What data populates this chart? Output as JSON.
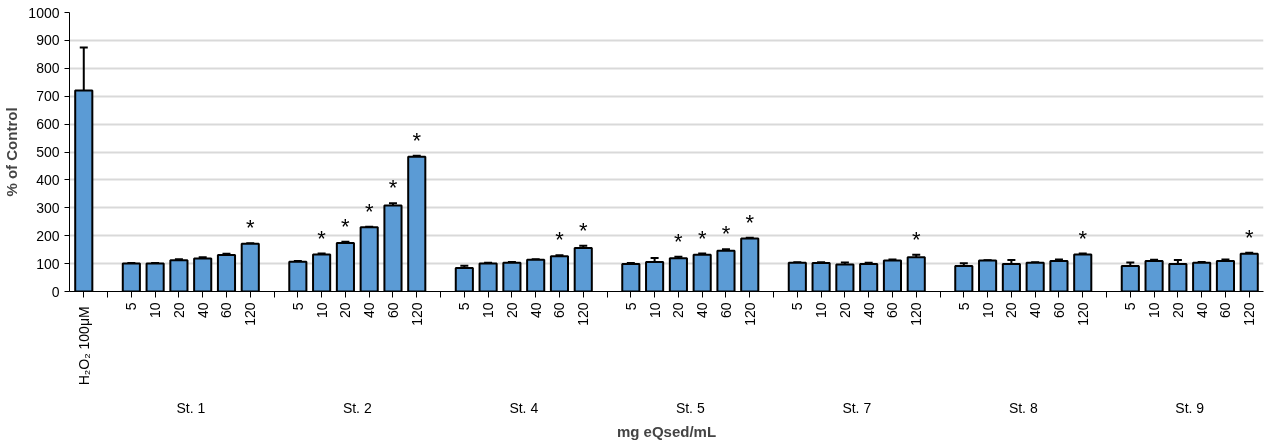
{
  "chart_data": {
    "type": "bar",
    "xlabel": "mg eQsed/mL",
    "ylabel": "% of Control",
    "categories": [
      "H₂O₂  100μM",
      null,
      "5",
      "10",
      "20",
      "40",
      "60",
      "120",
      null,
      "5",
      "10",
      "20",
      "40",
      "60",
      "120",
      null,
      "5",
      "10",
      "20",
      "40",
      "60",
      "120",
      null,
      "5",
      "10",
      "20",
      "40",
      "60",
      "120",
      null,
      "5",
      "10",
      "20",
      "40",
      "60",
      "120",
      null,
      "5",
      "10",
      "20",
      "40",
      "60",
      "120",
      null,
      "5",
      "10",
      "20",
      "40",
      "60",
      "120"
    ],
    "values": [
      720,
      null,
      100,
      100,
      112,
      118,
      131,
      171,
      null,
      107,
      133,
      174,
      230,
      308,
      483,
      null,
      84,
      100,
      103,
      114,
      126,
      156,
      null,
      99,
      106,
      119,
      132,
      146,
      190,
      null,
      103,
      102,
      97,
      99,
      111,
      123,
      null,
      91,
      111,
      99,
      103,
      109,
      133,
      null,
      91,
      109,
      99,
      103,
      109,
      135
    ],
    "errors": [
      155,
      null,
      2,
      2,
      4,
      5,
      4,
      2,
      null,
      2,
      3,
      4,
      2,
      8,
      4,
      null,
      8,
      3,
      3,
      2,
      4,
      8,
      null,
      3,
      14,
      6,
      4,
      5,
      3,
      null,
      2,
      3,
      7,
      4,
      4,
      9,
      null,
      10,
      1,
      14,
      2,
      6,
      3,
      null,
      13,
      5,
      14,
      3,
      6,
      4
    ],
    "value_labels": [
      null,
      null,
      null,
      null,
      null,
      null,
      null,
      "*",
      null,
      null,
      "*",
      "*",
      "*",
      "*",
      "*",
      null,
      null,
      null,
      null,
      null,
      "*",
      "*",
      null,
      null,
      null,
      "*",
      "*",
      "*",
      "*",
      null,
      null,
      null,
      null,
      null,
      null,
      "*",
      null,
      null,
      null,
      null,
      null,
      null,
      "*",
      null,
      null,
      null,
      null,
      null,
      null,
      "*"
    ],
    "annotations": [
      "St. 1",
      "St. 2",
      "St. 4",
      "St. 5",
      "St. 7",
      "St. 8",
      "St. 9"
    ],
    "color": "#5b9bd5",
    "ylim": [
      0,
      1000
    ],
    "yticks": [
      0,
      100,
      200,
      300,
      400,
      500,
      600,
      700,
      800,
      900,
      1000
    ],
    "grid": "y"
  }
}
